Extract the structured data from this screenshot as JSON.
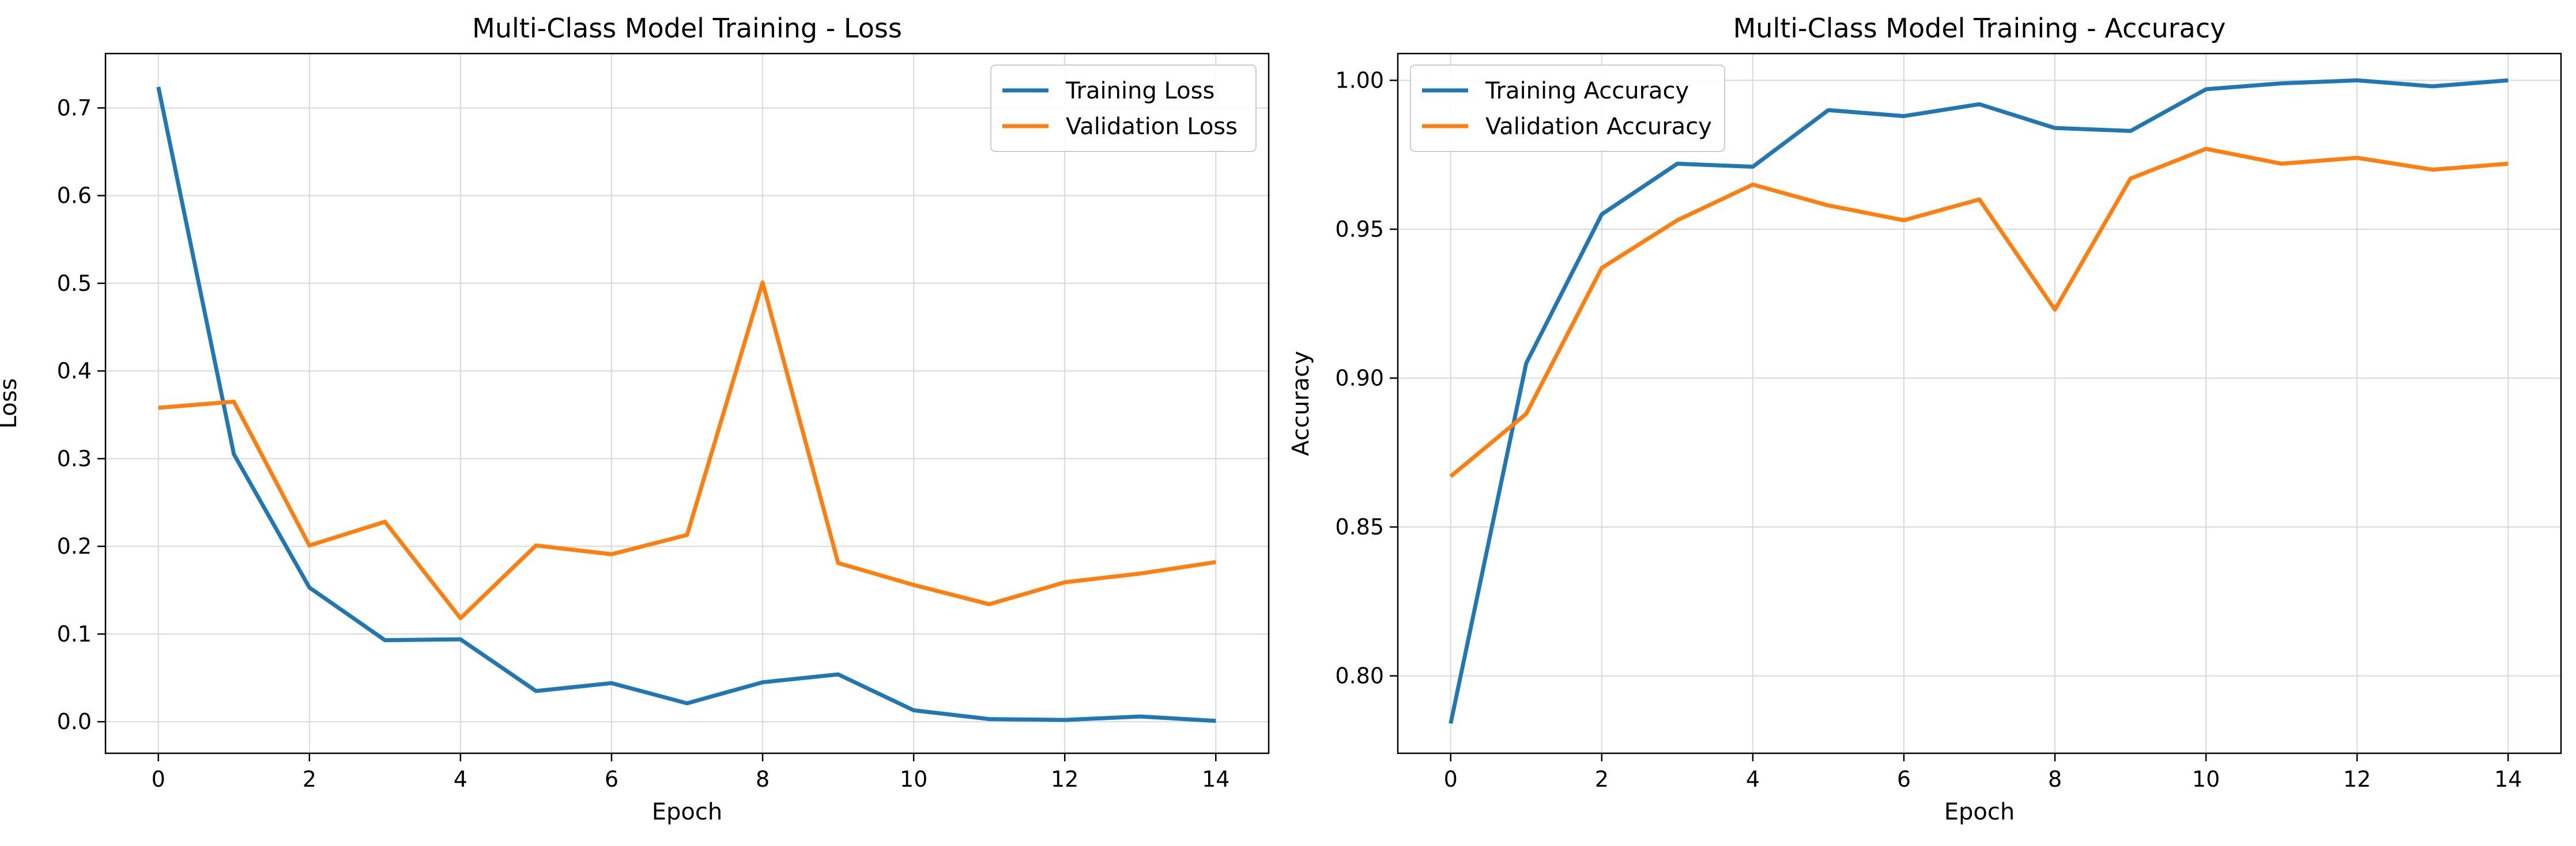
{
  "chart_data": [
    {
      "type": "line",
      "title": "Multi-Class Model Training - Loss",
      "xlabel": "Epoch",
      "ylabel": "Loss",
      "xlim": [
        -0.7,
        14.7
      ],
      "ylim": [
        -0.036,
        0.762
      ],
      "xticks": [
        0,
        2,
        4,
        6,
        8,
        10,
        12,
        14
      ],
      "yticks": [
        0.0,
        0.1,
        0.2,
        0.3,
        0.4,
        0.5,
        0.6,
        0.7
      ],
      "ytick_labels": [
        "0.0",
        "0.1",
        "0.2",
        "0.3",
        "0.4",
        "0.5",
        "0.6",
        "0.7"
      ],
      "grid": true,
      "legend_position": "upper-right",
      "x": [
        0,
        1,
        2,
        3,
        4,
        5,
        6,
        7,
        8,
        9,
        10,
        11,
        12,
        13,
        14
      ],
      "series": [
        {
          "name": "Training Loss",
          "color": "#1f77b4",
          "values": [
            0.724,
            0.305,
            0.153,
            0.093,
            0.094,
            0.035,
            0.044,
            0.021,
            0.045,
            0.054,
            0.013,
            0.003,
            0.002,
            0.006,
            0.001
          ]
        },
        {
          "name": "Validation Loss",
          "color": "#ff7f0e",
          "values": [
            0.358,
            0.365,
            0.201,
            0.228,
            0.118,
            0.201,
            0.191,
            0.213,
            0.501,
            0.181,
            0.156,
            0.134,
            0.159,
            0.169,
            0.182
          ]
        }
      ]
    },
    {
      "type": "line",
      "title": "Multi-Class Model Training - Accuracy",
      "xlabel": "Epoch",
      "ylabel": "Accuracy",
      "xlim": [
        -0.7,
        14.7
      ],
      "ylim": [
        0.774,
        1.009
      ],
      "xticks": [
        0,
        2,
        4,
        6,
        8,
        10,
        12,
        14
      ],
      "yticks": [
        0.8,
        0.85,
        0.9,
        0.95,
        1.0
      ],
      "ytick_labels": [
        "0.80",
        "0.85",
        "0.90",
        "0.95",
        "1.00"
      ],
      "grid": true,
      "legend_position": "upper-left",
      "x": [
        0,
        1,
        2,
        3,
        4,
        5,
        6,
        7,
        8,
        9,
        10,
        11,
        12,
        13,
        14
      ],
      "series": [
        {
          "name": "Training Accuracy",
          "color": "#1f77b4",
          "values": [
            0.784,
            0.905,
            0.955,
            0.972,
            0.971,
            0.99,
            0.988,
            0.992,
            0.984,
            0.983,
            0.997,
            0.999,
            1.0,
            0.998,
            1.0
          ]
        },
        {
          "name": "Validation Accuracy",
          "color": "#ff7f0e",
          "values": [
            0.867,
            0.888,
            0.937,
            0.953,
            0.965,
            0.958,
            0.953,
            0.96,
            0.923,
            0.967,
            0.977,
            0.972,
            0.974,
            0.97,
            0.972
          ]
        }
      ]
    }
  ]
}
